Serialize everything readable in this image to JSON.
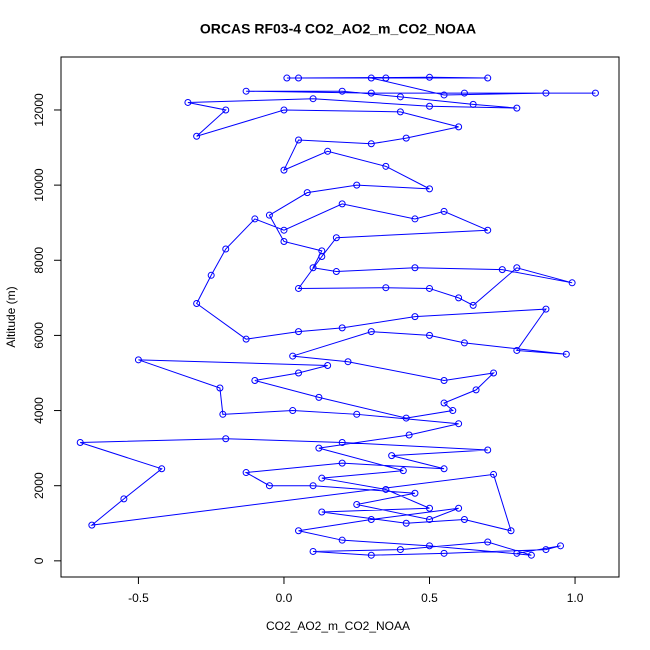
{
  "chart_data": {
    "type": "line",
    "title": "ORCAS RF03-4 CO2_AO2_m_CO2_NOAA",
    "x_label": "CO2_AO2_m_CO2_NOAA",
    "y_label": "Altitude (m)",
    "xlim": [
      -0.766,
      1.151
    ],
    "ylim": [
      -430,
      13410
    ],
    "xticks": [
      -0.5,
      {
        "value": 0,
        "label": "0.0"
      },
      0.5,
      {
        "value": 1,
        "label": "1.0"
      }
    ],
    "yticks": [
      0,
      2000,
      4000,
      6000,
      8000,
      10000,
      12000
    ],
    "grid": false,
    "markers": "open-circle",
    "x": [
      0.8,
      0.95,
      0.9,
      0.55,
      0.3,
      0.1,
      0.4,
      0.7,
      0.85,
      0.5,
      0.2,
      0.05,
      0.3,
      0.6,
      0.5,
      0.25,
      0.45,
      0.1,
      -0.05,
      -0.13,
      0.2,
      0.55,
      0.37,
      0.7,
      0.2,
      -0.2,
      -0.7,
      -0.42,
      -0.55,
      -0.66,
      0.72,
      0.78,
      0.62,
      0.42,
      0.13,
      0.5,
      0.35,
      0.13,
      0.41,
      0.12,
      0.43,
      0.6,
      0.25,
      0.03,
      -0.21,
      -0.22,
      -0.5,
      0.15,
      0.05,
      -0.1,
      0.12,
      0.42,
      0.58,
      0.55,
      0.66,
      0.72,
      0.55,
      0.22,
      0.03,
      0.3,
      0.5,
      0.62,
      0.97,
      0.8,
      0.9,
      0.45,
      0.2,
      0.05,
      -0.13,
      -0.3,
      -0.25,
      -0.2,
      -0.1,
      0.0,
      0.2,
      0.45,
      0.55,
      0.7,
      0.18,
      0.13,
      0.05,
      0.35,
      0.5,
      0.6,
      0.65,
      0.8,
      0.99,
      0.75,
      0.45,
      0.18,
      0.1,
      0.13,
      0.0,
      -0.05,
      0.08,
      0.25,
      0.5,
      0.35,
      0.15,
      0.0,
      0.05,
      0.3,
      0.42,
      0.6,
      0.4,
      0.0,
      -0.3,
      -0.2,
      -0.33,
      0.1,
      0.5,
      0.8,
      0.65,
      0.4,
      0.2,
      -0.13,
      0.3,
      0.62,
      1.07,
      0.9,
      0.55,
      0.3,
      0.01,
      0.35,
      0.7,
      0.5,
      0.05
    ],
    "series": [
      {
        "color": "#0000ff",
        "values": [
          200,
          400,
          300,
          200,
          150,
          250,
          300,
          500,
          150,
          400,
          550,
          800,
          1100,
          1400,
          1100,
          1500,
          1800,
          2000,
          2000,
          2350,
          2600,
          2450,
          2800,
          2950,
          3150,
          3250,
          3150,
          2450,
          1650,
          950,
          2300,
          800,
          1100,
          1000,
          1300,
          1400,
          1900,
          2200,
          2400,
          3000,
          3350,
          3650,
          3900,
          4000,
          3900,
          4600,
          5350,
          5200,
          5000,
          4800,
          4350,
          3800,
          4000,
          4200,
          4550,
          5000,
          4800,
          5300,
          5450,
          6100,
          6000,
          5800,
          5500,
          5600,
          6700,
          6500,
          6200,
          6100,
          5900,
          6850,
          7600,
          8300,
          9100,
          8800,
          9500,
          9100,
          9300,
          8800,
          8600,
          8100,
          7250,
          7270,
          7250,
          7000,
          6800,
          7800,
          7400,
          7750,
          7800,
          7700,
          7800,
          8250,
          8500,
          9200,
          9800,
          10000,
          9900,
          10500,
          10900,
          10400,
          11200,
          11100,
          11250,
          11550,
          11950,
          12000,
          11300,
          12000,
          12200,
          12300,
          12100,
          12050,
          12150,
          12350,
          12500,
          12500,
          12450,
          12450,
          12450,
          12450,
          12400,
          12850,
          12850,
          12850,
          12850,
          12870,
          12850
        ]
      }
    ]
  }
}
